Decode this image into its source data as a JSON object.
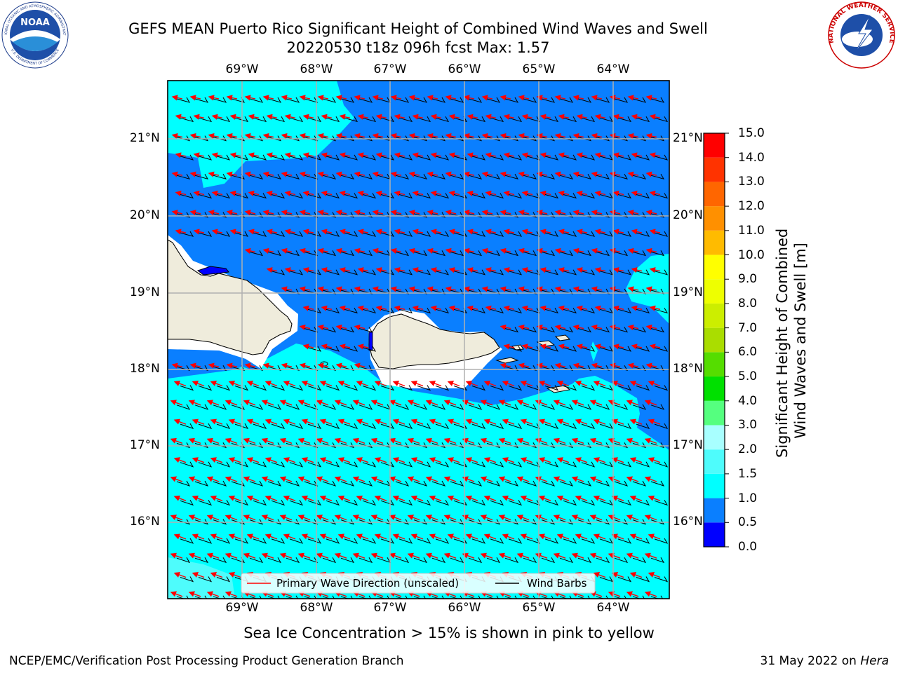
{
  "header": {
    "title_line1": "GEFS MEAN Puerto Rico Significant Height of Combined Wind Waves and Swell",
    "title_line2": "20220530 t18z 096h fcst   Max: 1.57"
  },
  "logos": {
    "noaa": {
      "center_text": "NOAA",
      "ring_text_top": "NATIONAL OCEANIC AND ATMOSPHERIC ADMINISTRATION",
      "ring_text_bottom": "U.S. DEPARTMENT OF COMMERCE"
    },
    "nws": {
      "ring_text": "NATIONAL WEATHER SERVICE"
    }
  },
  "map": {
    "lon_labels": [
      "69°W",
      "68°W",
      "67°W",
      "66°W",
      "65°W",
      "64°W"
    ],
    "lat_labels": [
      "21°N",
      "20°N",
      "19°N",
      "18°N",
      "17°N",
      "16°N"
    ],
    "gridlines": true,
    "legend": {
      "wave_direction_label": "Primary Wave Direction (unscaled)",
      "wind_barbs_label": "Wind Barbs",
      "wave_direction_color": "#ff0000",
      "wind_barb_color": "#000000"
    },
    "colors": {
      "land": "#efecdc",
      "sea_ice_mask": "#ffffff",
      "height_0_5_to_1_0": "#0a7fff",
      "height_1_0_to_1_5": "#00ffff",
      "height_1_5_to_2_0": "#4efcfc"
    }
  },
  "colorbar": {
    "label": "Significant Height of Combined Wind Waves and Swell [m]",
    "ticks": [
      "0.0",
      "0.5",
      "1.0",
      "1.5",
      "2.0",
      "3.0",
      "4.0",
      "5.0",
      "6.0",
      "7.0",
      "8.0",
      "9.0",
      "10.0",
      "11.0",
      "12.0",
      "13.0",
      "14.0",
      "15.0"
    ],
    "colors": [
      "#0000ff",
      "#0a7fff",
      "#00ffff",
      "#4efcfc",
      "#a8ffff",
      "#55ff7f",
      "#00e000",
      "#55dd00",
      "#aadd00",
      "#ccee00",
      "#eeff00",
      "#ffff00",
      "#ffbb00",
      "#ff9000",
      "#ff6600",
      "#ff3300",
      "#ff0000"
    ]
  },
  "footer": {
    "note": "Sea Ice Concentration > 15% is shown in pink to yellow",
    "left": "NCEP/EMC/Verification Post Processing Product Generation Branch",
    "right_date": "31 May 2022 on",
    "right_host": "Hera"
  }
}
